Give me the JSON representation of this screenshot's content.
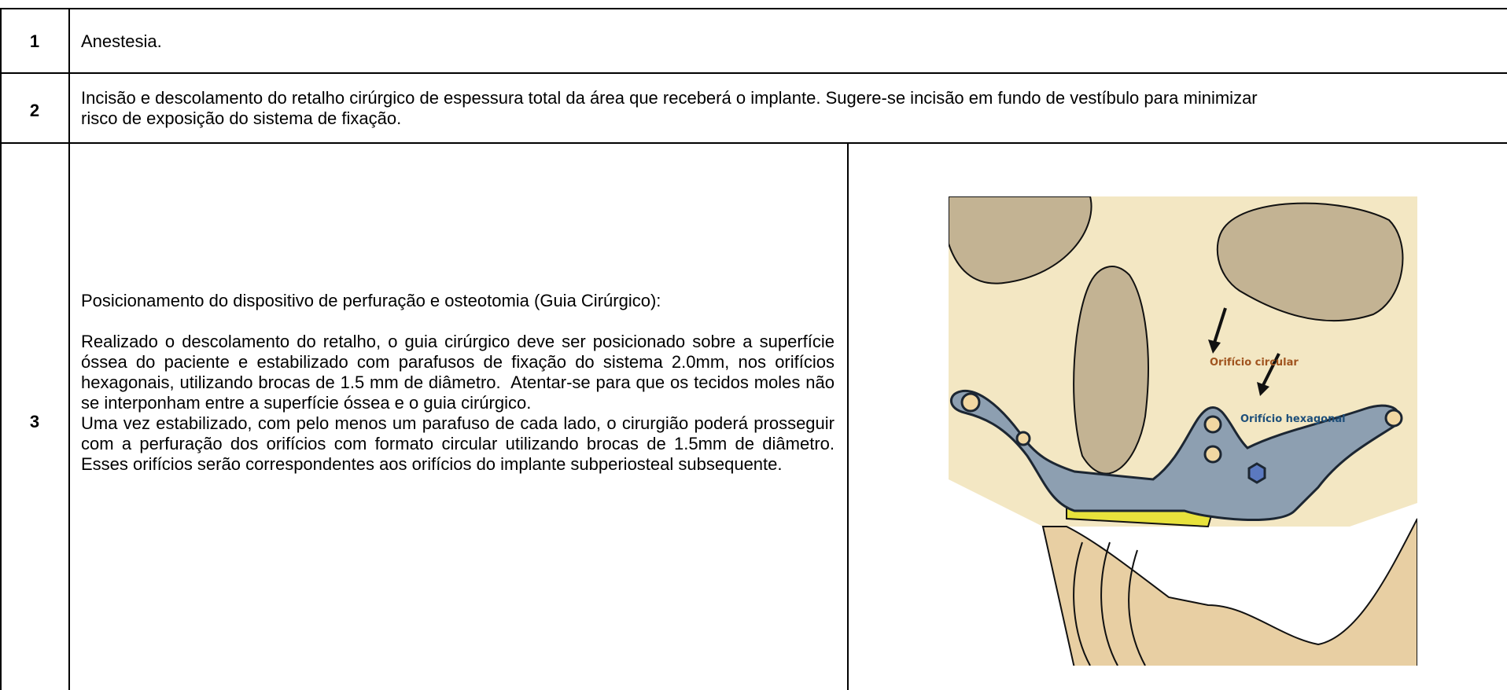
{
  "table": {
    "rows": [
      {
        "number": "1",
        "text": "Anestesia."
      },
      {
        "number": "2",
        "lines": [
          "Incisão e descolamento do retalho cirúrgico de espessura total da área que receberá o implante. Sugere-se incisão em fundo de vestíbulo para minimizar",
          "risco de exposição do sistema de fixação."
        ]
      },
      {
        "number": "3",
        "heading": "Posicionamento do dispositivo de perfuração e osteotomia (Guia Cirúrgico):",
        "paragraphs": [
          "Realizado o descolamento do retalho, o guia cirúrgico deve ser posicionado sobre a superfície óssea do paciente e estabilizado com parafusos de fixação do sistema 2.0mm, nos orifícios hexagonais, utilizando brocas de 1.5 mm de diâmetro.  Atentar-se para que os tecidos moles não se interponham entre a superfície óssea e o guia cirúrgico.",
          "Uma vez estabilizado, com pelo menos um parafuso de cada lado, o cirurgião poderá prosseguir com a perfuração dos orifícios com formato circular utilizando brocas de 1.5mm de diâmetro. Esses orifícios serão correspondentes aos orifícios do implante subperiosteal subsequente."
        ],
        "figure": {
          "labels": [
            "Orifício circular",
            "Orifício hexagonal"
          ]
        }
      }
    ]
  }
}
